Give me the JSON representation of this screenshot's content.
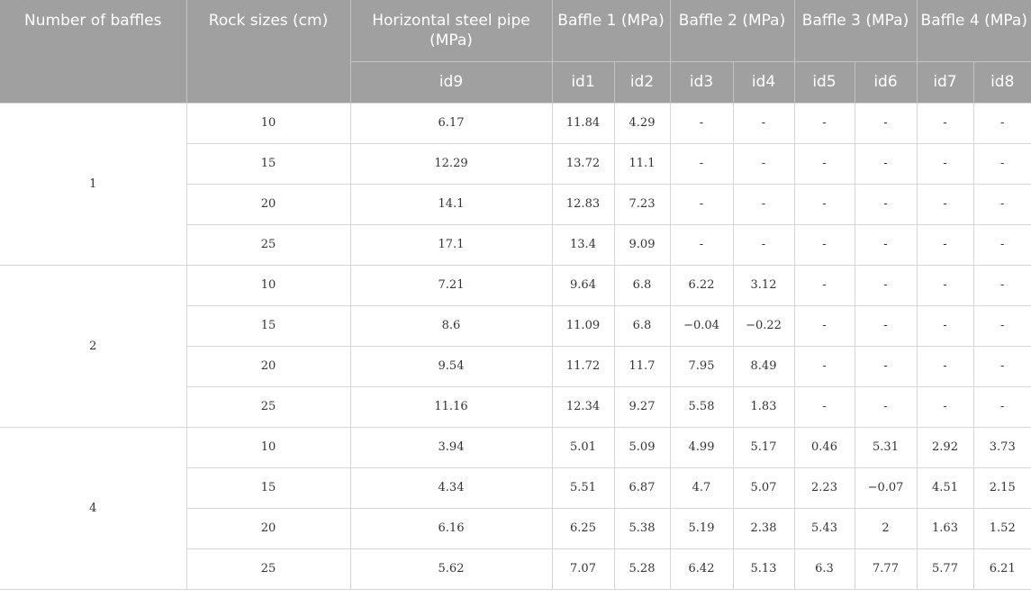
{
  "header": {
    "number_of_baffles": "Number of baffles",
    "rock_sizes": "Rock sizes (cm)",
    "horizontal_pipe": "Horizontal steel pipe (MPa)",
    "baffle1": "Baffle 1 (MPa)",
    "baffle2": "Baffle 2 (MPa)",
    "baffle3": "Baffle 3 (MPa)",
    "baffle4": "Baffle 4 (MPa)",
    "ids": [
      "id9",
      "id1",
      "id2",
      "id3",
      "id4",
      "id5",
      "id6",
      "id7",
      "id8"
    ]
  },
  "groups": [
    {
      "baffles": "1",
      "rows": [
        [
          "10",
          "6.17",
          "11.84",
          "4.29",
          "-",
          "-",
          "-",
          "-",
          "-",
          "-"
        ],
        [
          "15",
          "12.29",
          "13.72",
          "11.1",
          "-",
          "-",
          "-",
          "-",
          "-",
          "-"
        ],
        [
          "20",
          "14.1",
          "12.83",
          "7.23",
          "-",
          "-",
          "-",
          "-",
          "-",
          "-"
        ],
        [
          "25",
          "17.1",
          "13.4",
          "9.09",
          "-",
          "-",
          "-",
          "-",
          "-",
          "-"
        ]
      ]
    },
    {
      "baffles": "2",
      "rows": [
        [
          "10",
          "7.21",
          "9.64",
          "6.8",
          "6.22",
          "3.12",
          "-",
          "-",
          "-",
          "-"
        ],
        [
          "15",
          "8.6",
          "11.09",
          "6.8",
          "−0.04",
          "−0.22",
          "-",
          "-",
          "-",
          "-"
        ],
        [
          "20",
          "9.54",
          "11.72",
          "11.7",
          "7.95",
          "8.49",
          "-",
          "-",
          "-",
          "-"
        ],
        [
          "25",
          "11.16",
          "12.34",
          "9.27",
          "5.58",
          "1.83",
          "-",
          "-",
          "-",
          "-"
        ]
      ]
    },
    {
      "baffles": "4",
      "rows": [
        [
          "10",
          "3.94",
          "5.01",
          "5.09",
          "4.99",
          "5.17",
          "0.46",
          "5.31",
          "2.92",
          "3.73"
        ],
        [
          "15",
          "4.34",
          "5.51",
          "6.87",
          "4.7",
          "5.07",
          "2.23",
          "−0.07",
          "4.51",
          "2.15"
        ],
        [
          "20",
          "6.16",
          "6.25",
          "5.38",
          "5.19",
          "2.38",
          "5.43",
          "2",
          "1.63",
          "1.52"
        ],
        [
          "25",
          "5.62",
          "7.07",
          "5.28",
          "6.42",
          "5.13",
          "6.3",
          "7.77",
          "5.77",
          "6.21"
        ]
      ]
    }
  ]
}
